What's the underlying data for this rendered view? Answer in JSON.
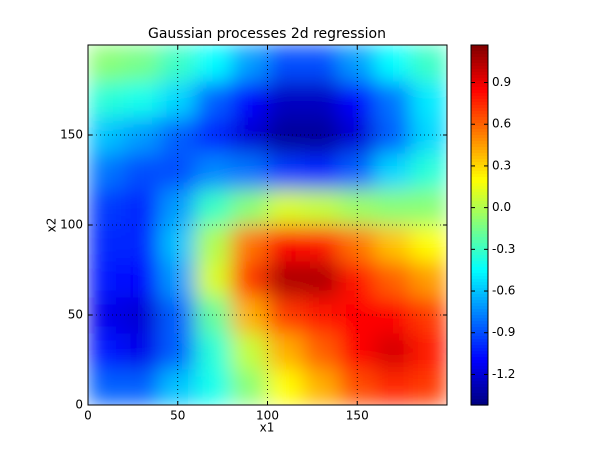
{
  "chart_data": {
    "type": "heatmap",
    "title": "Gaussian processes 2d regression",
    "xlabel": "x1",
    "ylabel": "x2",
    "x": [
      10,
      30,
      50,
      70,
      90,
      110,
      130,
      150,
      170,
      190
    ],
    "y": [
      10,
      30,
      50,
      70,
      90,
      110,
      130,
      150,
      170,
      190
    ],
    "z": [
      [
        -0.85,
        -0.85,
        -0.6,
        -0.4,
        -0.1,
        0.2,
        0.4,
        0.65,
        0.75,
        0.7
      ],
      [
        -1.05,
        -1.15,
        -0.85,
        -0.35,
        0.05,
        0.4,
        0.6,
        0.85,
        0.95,
        0.8
      ],
      [
        -1.15,
        -1.2,
        -0.85,
        -0.2,
        0.4,
        0.7,
        0.8,
        0.85,
        0.85,
        0.7
      ],
      [
        -1.05,
        -1.1,
        -0.7,
        0.1,
        0.7,
        1.05,
        1.05,
        0.8,
        0.6,
        0.45
      ],
      [
        -1.0,
        -1.0,
        -0.6,
        0.0,
        0.55,
        0.85,
        0.8,
        0.55,
        0.35,
        0.2
      ],
      [
        -0.95,
        -1.0,
        -0.7,
        -0.3,
        -0.1,
        0.1,
        0.05,
        -0.05,
        -0.1,
        -0.1
      ],
      [
        -0.8,
        -0.9,
        -0.9,
        -0.75,
        -0.8,
        -0.95,
        -1.0,
        -0.85,
        -0.55,
        -0.35
      ],
      [
        -0.6,
        -0.7,
        -0.85,
        -1.0,
        -1.2,
        -1.35,
        -1.35,
        -1.2,
        -0.85,
        -0.55
      ],
      [
        -0.35,
        -0.4,
        -0.55,
        -0.85,
        -1.1,
        -1.25,
        -1.25,
        -1.1,
        -0.8,
        -0.5
      ],
      [
        -0.1,
        -0.15,
        -0.3,
        -0.45,
        -0.7,
        -0.9,
        -0.9,
        -0.7,
        -0.45,
        -0.3
      ]
    ],
    "xlim": [
      0,
      200
    ],
    "ylim": [
      0,
      200
    ],
    "xticks": [
      0,
      50,
      100,
      150
    ],
    "yticks": [
      0,
      50,
      100,
      150
    ],
    "grid": true,
    "colormap": "jet",
    "clim": [
      -1.42,
      1.17
    ],
    "cticks": [
      -1.2,
      -0.9,
      -0.6,
      -0.3,
      {
        "value": 0,
        "label": "0.0"
      },
      0.3,
      0.6,
      0.9
    ]
  }
}
